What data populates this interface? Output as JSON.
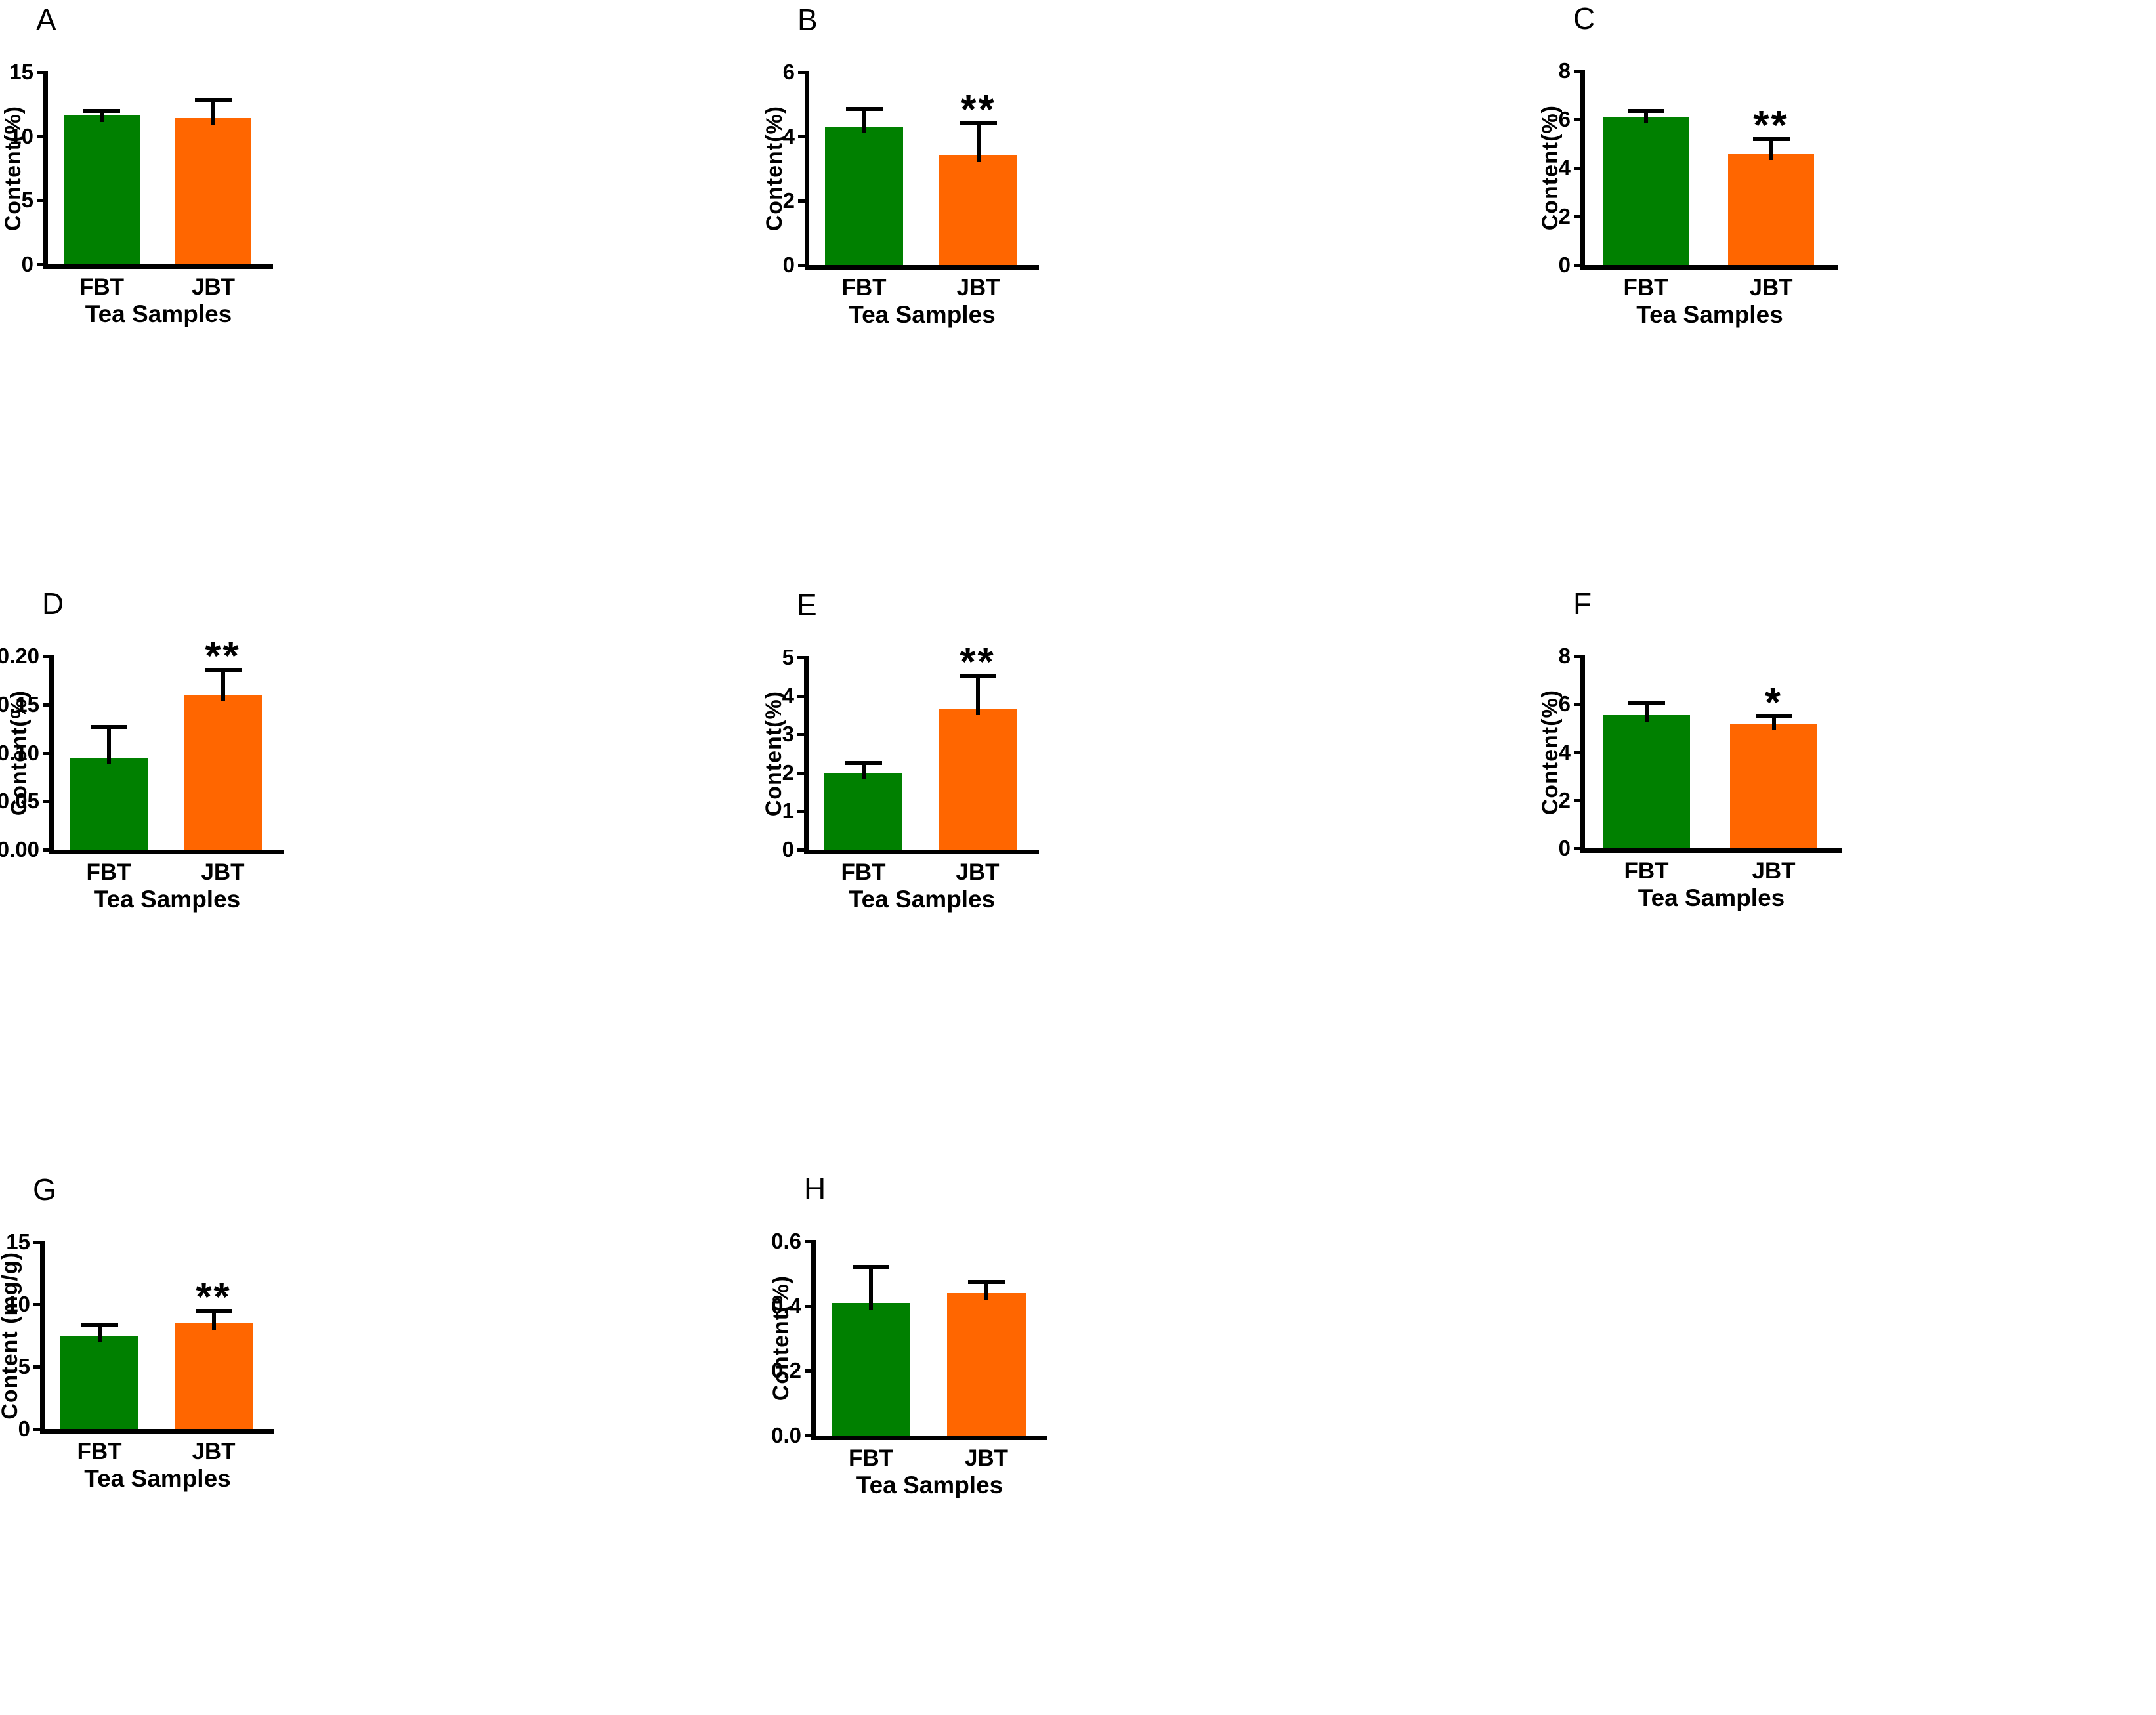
{
  "figure": {
    "title": "",
    "categories": [
      "FBT",
      "JBT"
    ],
    "xlabel": "Tea Samples",
    "bar_colors": {
      "FBT": "#008000",
      "JBT": "#FF6600"
    },
    "axis_color": "#000000",
    "background_color": "#ffffff"
  },
  "chart_data": [
    {
      "panel": "A",
      "type": "bar",
      "categories": [
        "FBT",
        "JBT"
      ],
      "values": [
        11.6,
        11.4
      ],
      "errors": [
        0.4,
        1.4
      ],
      "significance": [
        "",
        ""
      ],
      "ylabel": "Content(%)",
      "xlabel": "Tea Samples",
      "ylim": [
        0,
        15
      ],
      "yticks": [
        "0",
        "5",
        "10",
        "15"
      ],
      "grid": "off",
      "legend": "none"
    },
    {
      "panel": "B",
      "type": "bar",
      "categories": [
        "FBT",
        "JBT"
      ],
      "values": [
        4.3,
        3.4
      ],
      "errors": [
        0.55,
        1.0
      ],
      "significance": [
        "",
        "**"
      ],
      "ylabel": "Content(%)",
      "xlabel": "Tea Samples",
      "ylim": [
        0,
        6
      ],
      "yticks": [
        "0",
        "2",
        "4",
        "6"
      ],
      "grid": "off",
      "legend": "none"
    },
    {
      "panel": "C",
      "type": "bar",
      "categories": [
        "FBT",
        "JBT"
      ],
      "values": [
        6.1,
        4.6
      ],
      "errors": [
        0.25,
        0.6
      ],
      "significance": [
        "",
        "**"
      ],
      "ylabel": "Content(%)",
      "xlabel": "Tea Samples",
      "ylim": [
        0,
        8
      ],
      "yticks": [
        "0",
        "2",
        "4",
        "6",
        "8"
      ],
      "grid": "off",
      "legend": "none"
    },
    {
      "panel": "D",
      "type": "bar",
      "categories": [
        "FBT",
        "JBT"
      ],
      "values": [
        0.095,
        0.16
      ],
      "errors": [
        0.032,
        0.026
      ],
      "significance": [
        "",
        "**"
      ],
      "ylabel": "Content(%)",
      "xlabel": "Tea Samples",
      "ylim": [
        0,
        0.2
      ],
      "yticks": [
        "0.00",
        "0.05",
        "0.10",
        "0.15",
        "0.20"
      ],
      "grid": "off",
      "legend": "none"
    },
    {
      "panel": "E",
      "type": "bar",
      "categories": [
        "FBT",
        "JBT"
      ],
      "values": [
        2.0,
        3.67
      ],
      "errors": [
        0.25,
        0.85
      ],
      "significance": [
        "",
        "**"
      ],
      "ylabel": "Content(%)",
      "xlabel": "Tea Samples",
      "ylim": [
        0,
        5
      ],
      "yticks": [
        "0",
        "1",
        "2",
        "3",
        "4",
        "5"
      ],
      "grid": "off",
      "legend": "none"
    },
    {
      "panel": "F",
      "type": "bar",
      "categories": [
        "FBT",
        "JBT"
      ],
      "values": [
        5.55,
        5.2
      ],
      "errors": [
        0.5,
        0.3
      ],
      "significance": [
        "",
        "*"
      ],
      "ylabel": "Content(%)",
      "xlabel": "Tea Samples",
      "ylim": [
        0,
        8
      ],
      "yticks": [
        "0",
        "2",
        "4",
        "6",
        "8"
      ],
      "grid": "off",
      "legend": "none"
    },
    {
      "panel": "G",
      "type": "bar",
      "categories": [
        "FBT",
        "JBT"
      ],
      "values": [
        7.5,
        8.45
      ],
      "errors": [
        0.85,
        1.05
      ],
      "significance": [
        "",
        "**"
      ],
      "ylabel": "Content (mg/g)",
      "xlabel": "Tea Samples",
      "ylim": [
        0,
        15
      ],
      "yticks": [
        "0",
        "5",
        "10",
        "15"
      ],
      "grid": "off",
      "legend": "none"
    },
    {
      "panel": "H",
      "type": "bar",
      "categories": [
        "FBT",
        "JBT"
      ],
      "values": [
        0.41,
        0.44
      ],
      "errors": [
        0.11,
        0.035
      ],
      "significance": [
        "",
        ""
      ],
      "ylabel": "Content(%)",
      "xlabel": "Tea Samples",
      "ylim": [
        0,
        0.6
      ],
      "yticks": [
        "0.0",
        "0.2",
        "0.4",
        "0.6"
      ],
      "grid": "off",
      "legend": "none"
    }
  ]
}
